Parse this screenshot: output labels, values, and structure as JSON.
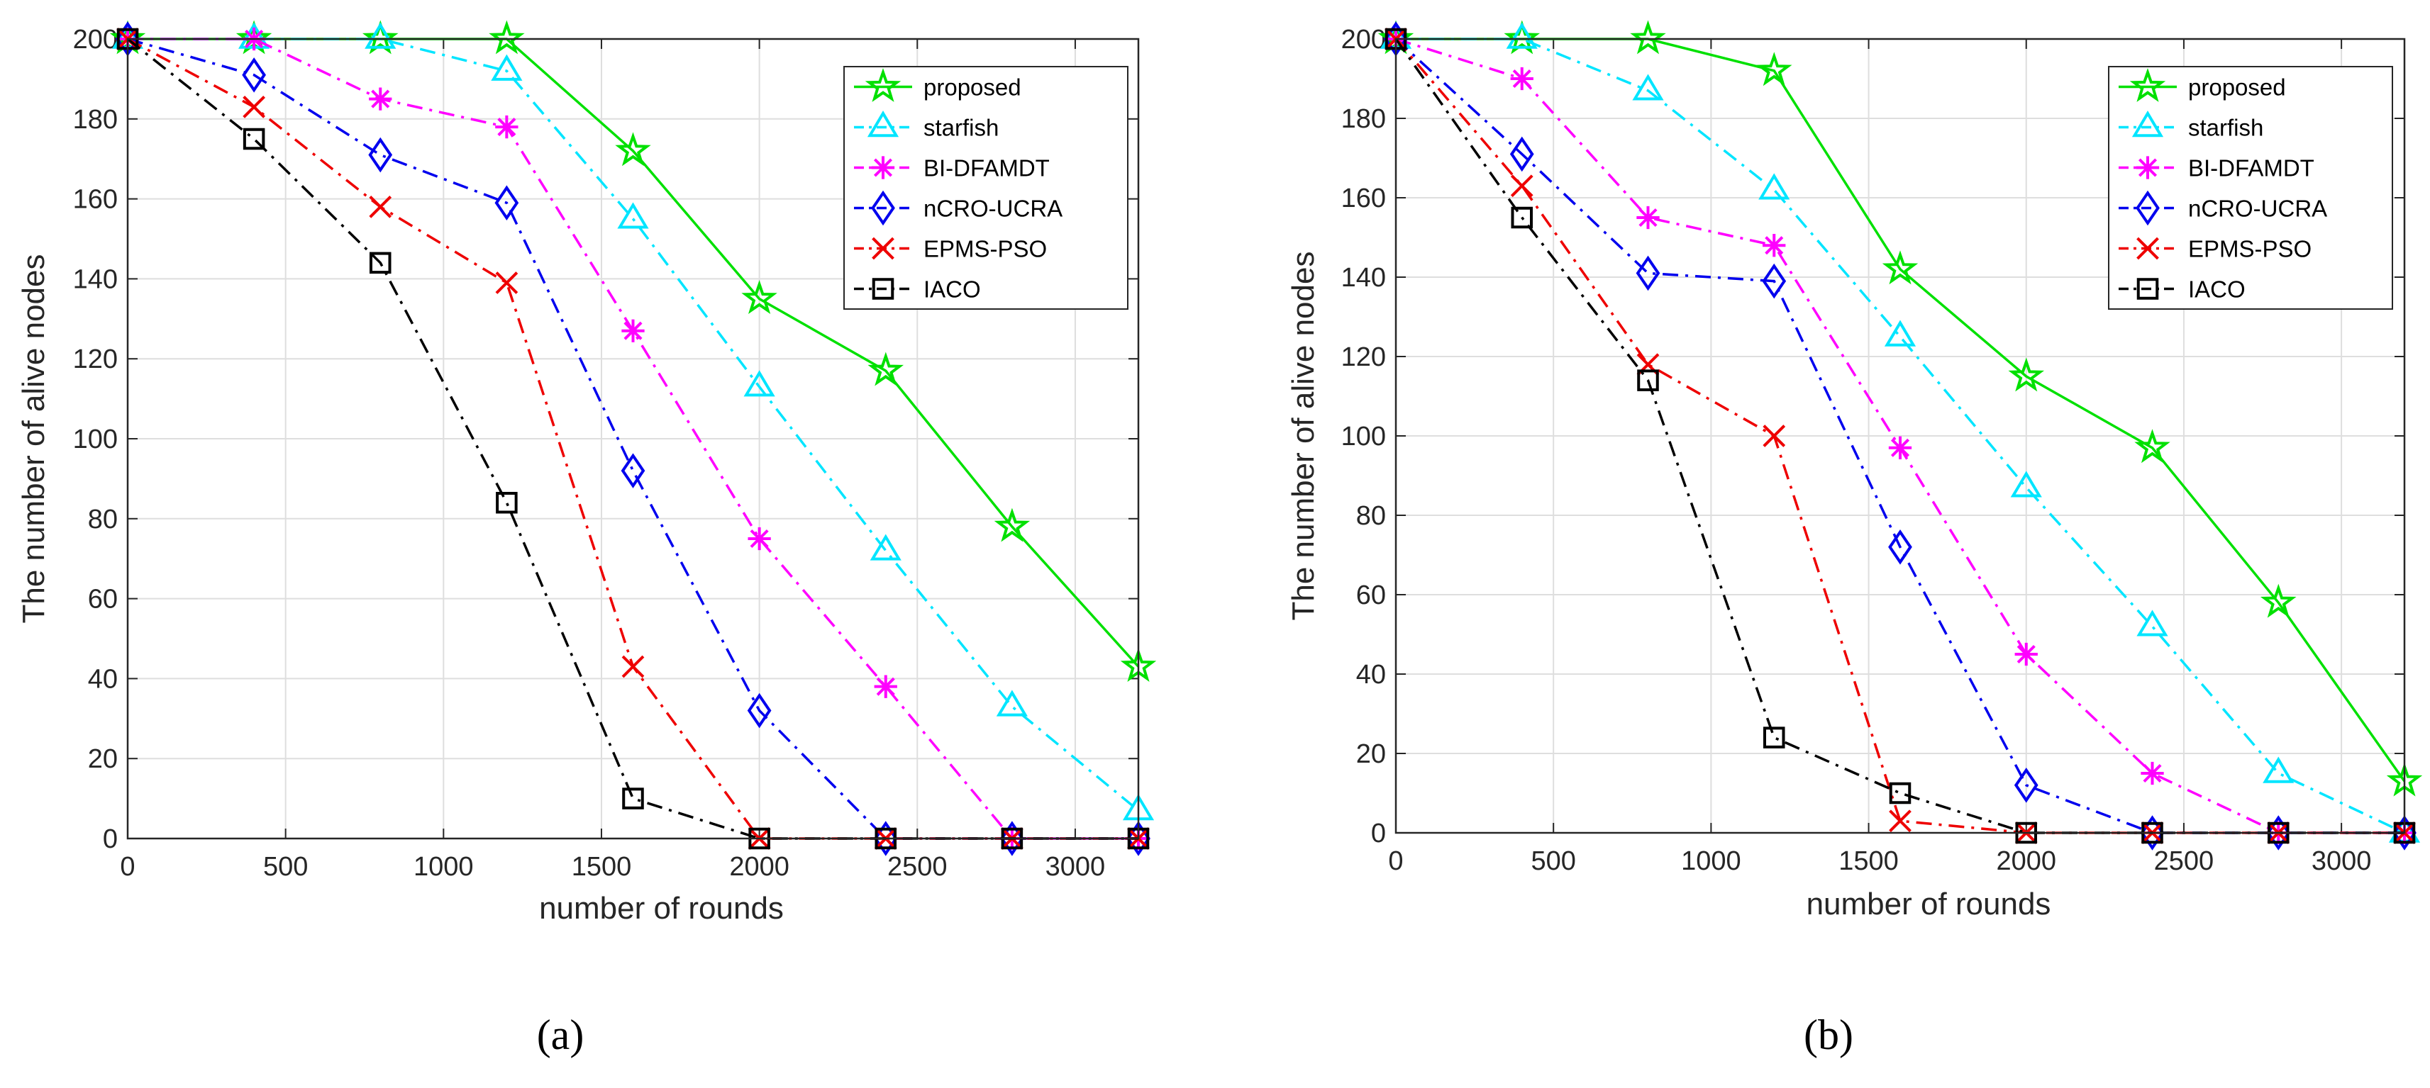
{
  "chart_data": [
    {
      "type": "line",
      "caption": "(a)",
      "title": "",
      "xlabel": "number of rounds",
      "ylabel": "The number of alive nodes",
      "xlim": [
        0,
        3200
      ],
      "ylim": [
        0,
        200
      ],
      "xticks": [
        0,
        500,
        1000,
        1500,
        2000,
        2500,
        3000
      ],
      "yticks": [
        0,
        20,
        40,
        60,
        80,
        100,
        120,
        140,
        160,
        180,
        200
      ],
      "grid": true,
      "legend_position": "top-right",
      "x": [
        0,
        400,
        800,
        1200,
        1600,
        2000,
        2400,
        2800,
        3200
      ],
      "series": [
        {
          "name": "proposed",
          "color": "#00e000",
          "marker": "star",
          "dash": "solid",
          "values": [
            200,
            200,
            200,
            200,
            172,
            135,
            117,
            78,
            43
          ]
        },
        {
          "name": "starfish",
          "color": "#00e5ff",
          "marker": "triangle",
          "dash": "dashdot",
          "values": [
            200,
            200,
            200,
            192,
            155,
            113,
            72,
            33,
            7
          ]
        },
        {
          "name": "BI-DFAMDT",
          "color": "#ff00ff",
          "marker": "asterisk",
          "dash": "dashdot",
          "values": [
            200,
            200,
            185,
            178,
            127,
            75,
            38,
            0,
            0
          ]
        },
        {
          "name": "nCRO-UCRA",
          "color": "#0000ee",
          "marker": "diamond",
          "dash": "dashdot",
          "values": [
            200,
            191,
            171,
            159,
            92,
            32,
            0,
            0,
            0
          ]
        },
        {
          "name": "EPMS-PSO",
          "color": "#ee0000",
          "marker": "cross",
          "dash": "dashdot",
          "values": [
            200,
            183,
            158,
            139,
            43,
            0,
            0,
            0,
            0
          ]
        },
        {
          "name": "IACO",
          "color": "#000000",
          "marker": "square",
          "dash": "dashdot",
          "values": [
            200,
            175,
            144,
            84,
            10,
            0,
            0,
            0,
            0
          ]
        }
      ]
    },
    {
      "type": "line",
      "caption": "(b)",
      "title": "",
      "xlabel": "number of rounds",
      "ylabel": "The number of alive nodes",
      "xlim": [
        0,
        3200
      ],
      "ylim": [
        0,
        200
      ],
      "xticks": [
        0,
        500,
        1000,
        1500,
        2000,
        2500,
        3000
      ],
      "yticks": [
        0,
        20,
        40,
        60,
        80,
        100,
        120,
        140,
        160,
        180,
        200
      ],
      "grid": true,
      "legend_position": "top-right",
      "x": [
        0,
        400,
        800,
        1200,
        1600,
        2000,
        2400,
        2800,
        3200
      ],
      "series": [
        {
          "name": "proposed",
          "color": "#00e000",
          "marker": "star",
          "dash": "solid",
          "values": [
            200,
            200,
            200,
            192,
            142,
            115,
            97,
            58,
            13
          ]
        },
        {
          "name": "starfish",
          "color": "#00e5ff",
          "marker": "triangle",
          "dash": "dashdot",
          "values": [
            200,
            200,
            187,
            162,
            125,
            87,
            52,
            15,
            0
          ]
        },
        {
          "name": "BI-DFAMDT",
          "color": "#ff00ff",
          "marker": "asterisk",
          "dash": "dashdot",
          "values": [
            200,
            190,
            155,
            148,
            97,
            45,
            15,
            0,
            0
          ]
        },
        {
          "name": "nCRO-UCRA",
          "color": "#0000ee",
          "marker": "diamond",
          "dash": "dashdot",
          "values": [
            200,
            171,
            141,
            139,
            72,
            12,
            0,
            0,
            0
          ]
        },
        {
          "name": "EPMS-PSO",
          "color": "#ee0000",
          "marker": "cross",
          "dash": "dashdot",
          "values": [
            200,
            163,
            118,
            100,
            3,
            0,
            0,
            0,
            0
          ]
        },
        {
          "name": "IACO",
          "color": "#000000",
          "marker": "square",
          "dash": "dashdot",
          "values": [
            200,
            155,
            114,
            24,
            10,
            0,
            0,
            0,
            0
          ]
        }
      ]
    }
  ]
}
